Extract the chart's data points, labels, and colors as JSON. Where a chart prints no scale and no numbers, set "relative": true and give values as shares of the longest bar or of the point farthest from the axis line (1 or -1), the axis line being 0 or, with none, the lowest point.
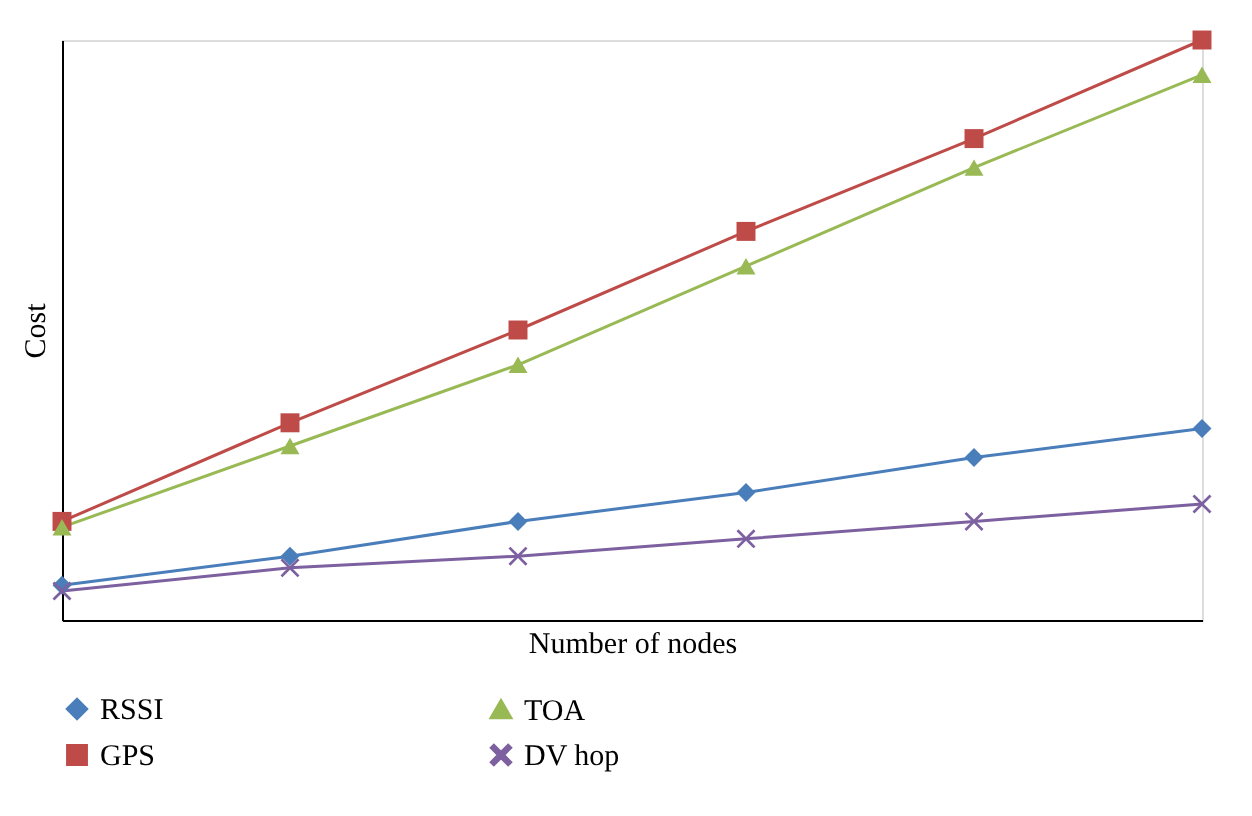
{
  "chart_data": {
    "type": "line",
    "relative": true,
    "xlabel": "Number of nodes",
    "ylabel": "Cost",
    "legend": "bottom",
    "grid": false,
    "categories": [
      null,
      null,
      null,
      null,
      null,
      null
    ],
    "series": [
      {
        "name": "RSSI",
        "color": "#4a7ebb",
        "marker": "diamond",
        "values": [
          0.06,
          0.11,
          0.17,
          0.22,
          0.28,
          0.33
        ]
      },
      {
        "name": "GPS",
        "color": "#be4b48",
        "marker": "square",
        "values": [
          0.17,
          0.34,
          0.5,
          0.67,
          0.83,
          1.0
        ]
      },
      {
        "name": "TOA",
        "color": "#98b954",
        "marker": "triangle",
        "values": [
          0.16,
          0.3,
          0.44,
          0.61,
          0.78,
          0.94
        ]
      },
      {
        "name": "DV hop",
        "color": "#7d60a0",
        "marker": "cross",
        "values": [
          0.05,
          0.09,
          0.11,
          0.14,
          0.17,
          0.2
        ]
      }
    ]
  }
}
